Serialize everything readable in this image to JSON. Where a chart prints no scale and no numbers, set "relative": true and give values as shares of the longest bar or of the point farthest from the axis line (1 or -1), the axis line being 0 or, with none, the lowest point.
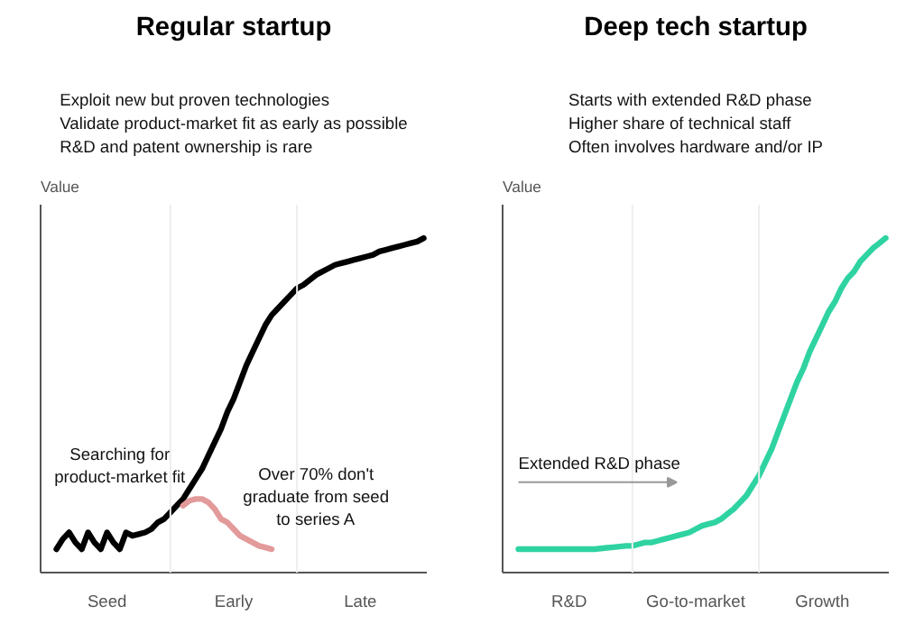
{
  "chart_data": [
    {
      "type": "line",
      "title": "Regular startup",
      "subtitle": "Exploit new but proven technologies\nValidate product-market fit as early as possible\nR&D and patent ownership is rare",
      "ylabel": "Value",
      "relative": true,
      "categories": [
        null,
        null,
        null,
        null,
        null,
        null,
        null,
        null,
        null,
        null,
        "Seed",
        null,
        null,
        null,
        null,
        null,
        null,
        null,
        null,
        null,
        null,
        null,
        null,
        null,
        null,
        null,
        null,
        null,
        null,
        null,
        "Early",
        null,
        null,
        null,
        null,
        null,
        null,
        null,
        null,
        null,
        null,
        null,
        null,
        null,
        null,
        null,
        null,
        null,
        null,
        null,
        "Late",
        null,
        null,
        null,
        null,
        null,
        null,
        null,
        null,
        null,
        null
      ],
      "annotations": [
        "Searching for\nproduct-market fit",
        "Over 70% don't\ngraduate from seed\nto series A"
      ],
      "series": [
        {
          "color": "#000000",
          "values": [
            null,
            null,
            0.07,
            0.1,
            0.12,
            0.09,
            0.07,
            0.12,
            0.09,
            0.07,
            0.12,
            0.09,
            0.07,
            0.12,
            0.11,
            0.115,
            0.12,
            0.13,
            0.15,
            0.16,
            0.18,
            0.2,
            0.22,
            0.25,
            0.28,
            0.31,
            0.35,
            0.39,
            0.43,
            0.48,
            0.52,
            0.57,
            0.62,
            0.66,
            0.7,
            0.74,
            0.77,
            0.79,
            0.81,
            0.83,
            0.85,
            0.86,
            0.875,
            0.89,
            0.9,
            0.91,
            0.92,
            0.925,
            0.93,
            0.935,
            0.94,
            0.945,
            0.95,
            0.96,
            0.965,
            0.97,
            0.975,
            0.98,
            0.985,
            0.99,
            1.0
          ]
        },
        {
          "color": "#e39a9a",
          "values": [
            null,
            null,
            null,
            null,
            null,
            null,
            null,
            null,
            null,
            null,
            null,
            null,
            null,
            null,
            null,
            null,
            null,
            null,
            null,
            null,
            null,
            null,
            0.2,
            0.215,
            0.22,
            0.22,
            0.21,
            0.19,
            0.16,
            0.15,
            0.13,
            0.11,
            0.1,
            0.09,
            0.08,
            0.075,
            0.07,
            null,
            null,
            null,
            null,
            null,
            null,
            null,
            null,
            null,
            null,
            null,
            null,
            null,
            null,
            null,
            null,
            null,
            null,
            null,
            null,
            null,
            null,
            null,
            null
          ]
        }
      ]
    },
    {
      "type": "line",
      "title": "Deep tech startup",
      "subtitle": "Starts with extended R&D phase\nHigher share of technical staff\nOften involves hardware and/or IP",
      "ylabel": "Value",
      "relative": true,
      "categories": [
        null,
        null,
        null,
        null,
        null,
        null,
        null,
        null,
        null,
        null,
        "R&D",
        null,
        null,
        null,
        null,
        null,
        null,
        null,
        null,
        null,
        null,
        null,
        null,
        null,
        null,
        null,
        null,
        null,
        null,
        null,
        "Go-to-market",
        null,
        null,
        null,
        null,
        null,
        null,
        null,
        null,
        null,
        null,
        null,
        null,
        null,
        null,
        null,
        null,
        null,
        null,
        null,
        "Growth",
        null,
        null,
        null,
        null,
        null,
        null,
        null,
        null,
        null,
        null
      ],
      "annotations": [
        "Extended R&D phase"
      ],
      "series": [
        {
          "color": "#2fd3a2",
          "values": [
            null,
            null,
            0.07,
            0.07,
            0.07,
            0.07,
            0.07,
            0.07,
            0.07,
            0.07,
            0.07,
            0.07,
            0.07,
            0.07,
            0.07,
            0.072,
            0.074,
            0.076,
            0.078,
            0.08,
            0.08,
            0.085,
            0.09,
            0.09,
            0.095,
            0.1,
            0.105,
            0.11,
            0.115,
            0.12,
            0.13,
            0.14,
            0.145,
            0.15,
            0.16,
            0.175,
            0.19,
            0.21,
            0.23,
            0.26,
            0.29,
            0.33,
            0.37,
            0.42,
            0.47,
            0.52,
            0.57,
            0.61,
            0.66,
            0.7,
            0.74,
            0.78,
            0.81,
            0.85,
            0.88,
            0.9,
            0.93,
            0.95,
            0.97,
            0.985,
            1.0
          ]
        }
      ]
    }
  ]
}
